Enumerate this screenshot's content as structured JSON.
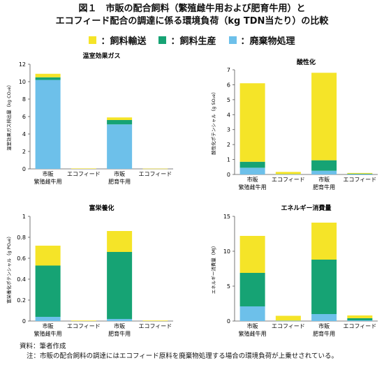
{
  "title": {
    "line1": "図１　市販の配合飼料（繁殖雌牛用および肥育牛用）と",
    "line2": "エコフィード配合の調達に係る環境負荷（kg TDN当たり）の比較"
  },
  "colors": {
    "transport": "#f5e428",
    "production": "#16a374",
    "waste": "#6dc0ea"
  },
  "legend": [
    {
      "marker": "■",
      "label": "：飼料輸送",
      "color": "#f5e428"
    },
    {
      "marker": "■",
      "label": "：飼料生産",
      "color": "#16a374"
    },
    {
      "marker": "■",
      "label": "：廃棄物処理",
      "color": "#6dc0ea"
    }
  ],
  "chart_data": [
    {
      "type": "bar",
      "stacked": true,
      "title": "温室効果ガス",
      "ylabel": "温室効果ガス排出量（kg CO₂e）",
      "ylim": [
        0,
        12
      ],
      "yticks": [
        0,
        2,
        4,
        6,
        8,
        10,
        12
      ],
      "categories": [
        "市販",
        "エコフィード",
        "市販",
        "エコフィード"
      ],
      "groups": [
        "繁殖雌牛用",
        "肥育牛用"
      ],
      "series": [
        {
          "name": "廃棄物処理",
          "values": [
            10.2,
            0.0,
            5.1,
            0.0
          ]
        },
        {
          "name": "飼料生産",
          "values": [
            0.3,
            0.0,
            0.5,
            0.0
          ]
        },
        {
          "name": "飼料輸送",
          "values": [
            0.4,
            0.05,
            0.3,
            0.03
          ]
        }
      ]
    },
    {
      "type": "bar",
      "stacked": true,
      "title": "酸性化",
      "ylabel": "酸性化ポテンシャル（g SO₂e）",
      "ylim": [
        0,
        7
      ],
      "yticks": [
        0,
        1,
        2,
        3,
        4,
        5,
        6,
        7
      ],
      "categories": [
        "市販",
        "エコフィード",
        "市販",
        "エコフィード"
      ],
      "groups": [
        "繁殖雌牛用",
        "肥育牛用"
      ],
      "series": [
        {
          "name": "廃棄物処理",
          "values": [
            0.45,
            0.02,
            0.25,
            0.02
          ]
        },
        {
          "name": "飼料生産",
          "values": [
            0.4,
            0.0,
            0.7,
            0.03
          ]
        },
        {
          "name": "飼料輸送",
          "values": [
            5.25,
            0.15,
            5.85,
            0.05
          ]
        }
      ]
    },
    {
      "type": "bar",
      "stacked": true,
      "title": "富栄養化",
      "ylabel": "富栄養化ポテンシャル（g PO₄e）",
      "ylim": [
        0,
        1
      ],
      "yticks": [
        0,
        0.2,
        0.4,
        0.6,
        0.8,
        1
      ],
      "categories": [
        "市販",
        "エコフィード",
        "市販",
        "エコフィード"
      ],
      "groups": [
        "繁殖雌牛用",
        "肥育牛用"
      ],
      "series": [
        {
          "name": "廃棄物処理",
          "values": [
            0.04,
            0.0,
            0.02,
            0.0
          ]
        },
        {
          "name": "飼料生産",
          "values": [
            0.49,
            0.0,
            0.64,
            0.0
          ]
        },
        {
          "name": "飼料輸送",
          "values": [
            0.19,
            0.005,
            0.2,
            0.005
          ]
        }
      ]
    },
    {
      "type": "bar",
      "stacked": true,
      "title": "エネルギー消費量",
      "ylabel": "エネルギー消費量（MJ）",
      "ylim": [
        0,
        15
      ],
      "yticks": [
        0,
        5,
        10,
        15
      ],
      "categories": [
        "市販",
        "エコフィード",
        "市販",
        "エコフィード"
      ],
      "groups": [
        "繁殖雌牛用",
        "肥育牛用"
      ],
      "series": [
        {
          "name": "廃棄物処理",
          "values": [
            2.1,
            0.05,
            1.0,
            0.1
          ]
        },
        {
          "name": "飼料生産",
          "values": [
            4.8,
            0.0,
            7.8,
            0.3
          ]
        },
        {
          "name": "飼料輸送",
          "values": [
            5.3,
            0.7,
            5.3,
            0.4
          ]
        }
      ]
    }
  ],
  "footer": {
    "source": "資料：筆者作成",
    "note": "注：市販の配合飼料の調達にはエコフィード原料を廃棄物処理する場合の環境負荷が上乗せされている。"
  }
}
